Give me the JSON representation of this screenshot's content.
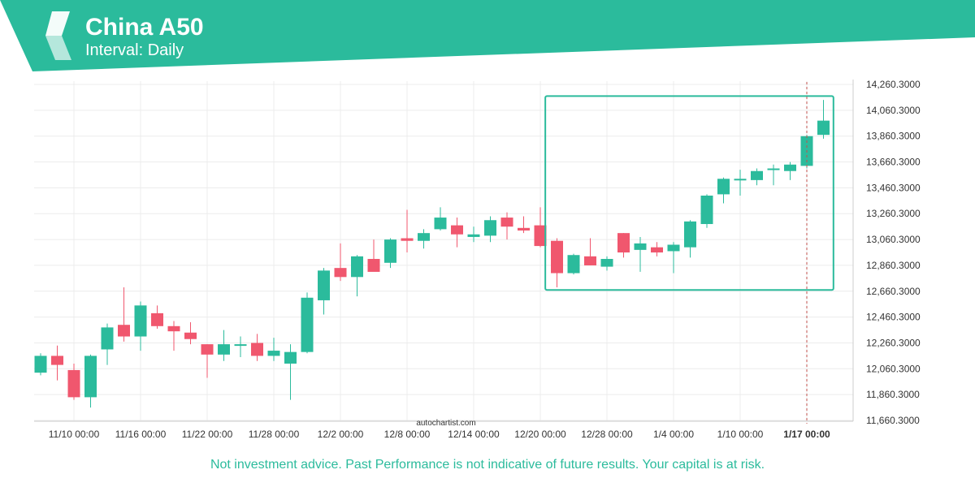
{
  "header": {
    "title": "China A50",
    "subtitle": "Interval: Daily"
  },
  "watermark": "autochartist.com",
  "disclaimer": "Not investment advice. Past Performance is not indicative of future results. Your capital is at risk.",
  "colors": {
    "brand": "#2bbb9c",
    "up": "#2bbb9c",
    "down": "#f0576e",
    "grid": "#ececec",
    "axis_text": "#333333",
    "marker": "#c0504d"
  },
  "chart_data": {
    "type": "candlestick",
    "ylim": [
      11630,
      14330
    ],
    "y_ticks": [
      "14,260.3000",
      "14,060.3000",
      "13,860.3000",
      "13,660.3000",
      "13,460.3000",
      "13,260.3000",
      "13,060.3000",
      "12,860.3000",
      "12,660.3000",
      "12,460.3000",
      "12,260.3000",
      "12,060.3000",
      "11,860.3000",
      "11,660.3000"
    ],
    "y_tick_values": [
      14260.3,
      14060.3,
      13860.3,
      13660.3,
      13460.3,
      13260.3,
      13060.3,
      12860.3,
      12660.3,
      12460.3,
      12260.3,
      12060.3,
      11860.3,
      11660.3
    ],
    "x_tick_labels": [
      "11/10 00:00",
      "11/16 00:00",
      "11/22 00:00",
      "11/28 00:00",
      "12/2 00:00",
      "12/8 00:00",
      "12/14 00:00",
      "12/20 00:00",
      "12/28 00:00",
      "1/4 00:00",
      "1/10 00:00",
      "1/17 00:00"
    ],
    "x_tick_index": [
      2,
      6,
      10,
      14,
      18,
      22,
      26,
      30,
      34,
      38,
      42,
      46
    ],
    "highlighted_tick": "1/17 00:00",
    "marker_index": 46,
    "pattern_box": {
      "start_index": 30.3,
      "end_index": 47.6,
      "y_low": 12670,
      "y_high": 14170
    },
    "candles": [
      {
        "o": 12030,
        "h": 12180,
        "l": 12010,
        "c": 12160
      },
      {
        "o": 12160,
        "h": 12240,
        "l": 11970,
        "c": 12090
      },
      {
        "o": 12050,
        "h": 12100,
        "l": 11820,
        "c": 11840
      },
      {
        "o": 11840,
        "h": 12170,
        "l": 11760,
        "c": 12160
      },
      {
        "o": 12210,
        "h": 12410,
        "l": 12090,
        "c": 12380
      },
      {
        "o": 12400,
        "h": 12690,
        "l": 12270,
        "c": 12310
      },
      {
        "o": 12310,
        "h": 12580,
        "l": 12200,
        "c": 12550
      },
      {
        "o": 12490,
        "h": 12550,
        "l": 12370,
        "c": 12390
      },
      {
        "o": 12390,
        "h": 12430,
        "l": 12200,
        "c": 12350
      },
      {
        "o": 12340,
        "h": 12420,
        "l": 12250,
        "c": 12290
      },
      {
        "o": 12250,
        "h": 12250,
        "l": 11990,
        "c": 12170
      },
      {
        "o": 12170,
        "h": 12360,
        "l": 12120,
        "c": 12250
      },
      {
        "o": 12240,
        "h": 12310,
        "l": 12150,
        "c": 12250
      },
      {
        "o": 12260,
        "h": 12330,
        "l": 12120,
        "c": 12160
      },
      {
        "o": 12160,
        "h": 12300,
        "l": 12120,
        "c": 12200
      },
      {
        "o": 12100,
        "h": 12250,
        "l": 11820,
        "c": 12190
      },
      {
        "o": 12190,
        "h": 12650,
        "l": 12180,
        "c": 12610
      },
      {
        "o": 12590,
        "h": 12840,
        "l": 12480,
        "c": 12820
      },
      {
        "o": 12840,
        "h": 13030,
        "l": 12740,
        "c": 12770
      },
      {
        "o": 12770,
        "h": 12940,
        "l": 12620,
        "c": 12930
      },
      {
        "o": 12910,
        "h": 13060,
        "l": 12820,
        "c": 12810
      },
      {
        "o": 12880,
        "h": 13070,
        "l": 12840,
        "c": 13060
      },
      {
        "o": 13070,
        "h": 13290,
        "l": 12960,
        "c": 13050
      },
      {
        "o": 13050,
        "h": 13140,
        "l": 12990,
        "c": 13110
      },
      {
        "o": 13140,
        "h": 13310,
        "l": 13130,
        "c": 13230
      },
      {
        "o": 13170,
        "h": 13230,
        "l": 13000,
        "c": 13100
      },
      {
        "o": 13080,
        "h": 13160,
        "l": 13040,
        "c": 13100
      },
      {
        "o": 13090,
        "h": 13240,
        "l": 13040,
        "c": 13210
      },
      {
        "o": 13230,
        "h": 13270,
        "l": 13060,
        "c": 13160
      },
      {
        "o": 13150,
        "h": 13240,
        "l": 13110,
        "c": 13130
      },
      {
        "o": 13170,
        "h": 13310,
        "l": 13000,
        "c": 13010
      },
      {
        "o": 13050,
        "h": 13070,
        "l": 12690,
        "c": 12800
      },
      {
        "o": 12800,
        "h": 12950,
        "l": 12790,
        "c": 12940
      },
      {
        "o": 12930,
        "h": 13070,
        "l": 12860,
        "c": 12860
      },
      {
        "o": 12850,
        "h": 12930,
        "l": 12820,
        "c": 12910
      },
      {
        "o": 13110,
        "h": 13110,
        "l": 12920,
        "c": 12960
      },
      {
        "o": 12980,
        "h": 13080,
        "l": 12810,
        "c": 13030
      },
      {
        "o": 13000,
        "h": 13040,
        "l": 12930,
        "c": 12960
      },
      {
        "o": 12970,
        "h": 13040,
        "l": 12800,
        "c": 13020
      },
      {
        "o": 13000,
        "h": 13210,
        "l": 12920,
        "c": 13200
      },
      {
        "o": 13180,
        "h": 13410,
        "l": 13150,
        "c": 13400
      },
      {
        "o": 13410,
        "h": 13540,
        "l": 13340,
        "c": 13530
      },
      {
        "o": 13520,
        "h": 13600,
        "l": 13400,
        "c": 13530
      },
      {
        "o": 13520,
        "h": 13610,
        "l": 13480,
        "c": 13590
      },
      {
        "o": 13610,
        "h": 13640,
        "l": 13480,
        "c": 13610
      },
      {
        "o": 13590,
        "h": 13660,
        "l": 13520,
        "c": 13640
      },
      {
        "o": 13630,
        "h": 13870,
        "l": 13610,
        "c": 13860
      },
      {
        "o": 13870,
        "h": 14140,
        "l": 13840,
        "c": 13980
      }
    ]
  }
}
